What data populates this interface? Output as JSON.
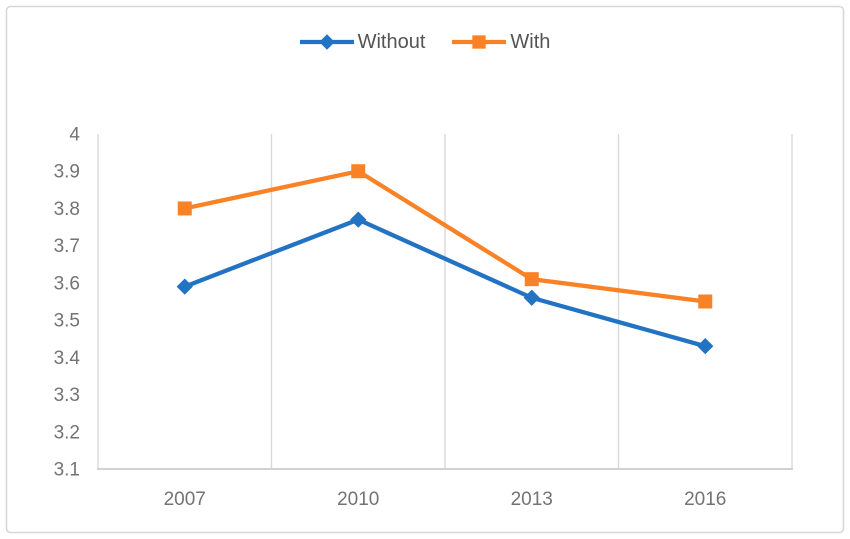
{
  "figure": {
    "background": "#ffffff",
    "border_color": "#d8d8d8",
    "grid_color": "#d9d9d9",
    "axis_line_color": "#d2d2d2",
    "tick_color": "#737373",
    "legend_text_color": "#545454"
  },
  "legend": {
    "position": "top-center",
    "items": [
      {
        "label": "Without",
        "color": "#2273c3",
        "marker": "diamond"
      },
      {
        "label": "With",
        "color": "#f98227",
        "marker": "square"
      }
    ]
  },
  "chart_data": {
    "type": "line",
    "title": "",
    "xlabel": "",
    "ylabel": "",
    "x": [
      "2007",
      "2010",
      "2013",
      "2016"
    ],
    "series": [
      {
        "name": "Without",
        "color": "#2273c3",
        "marker": "diamond",
        "values": [
          3.59,
          3.77,
          3.56,
          3.43
        ]
      },
      {
        "name": "With",
        "color": "#f98227",
        "marker": "square",
        "values": [
          3.8,
          3.9,
          3.61,
          3.55
        ]
      }
    ],
    "ylim": [
      3.1,
      4.0
    ],
    "yticks": [
      4,
      3.9,
      3.8,
      3.7,
      3.6,
      3.5,
      3.4,
      3.3,
      3.2,
      3.1
    ],
    "grid": "vertical-only",
    "legend_position": "top-center"
  }
}
